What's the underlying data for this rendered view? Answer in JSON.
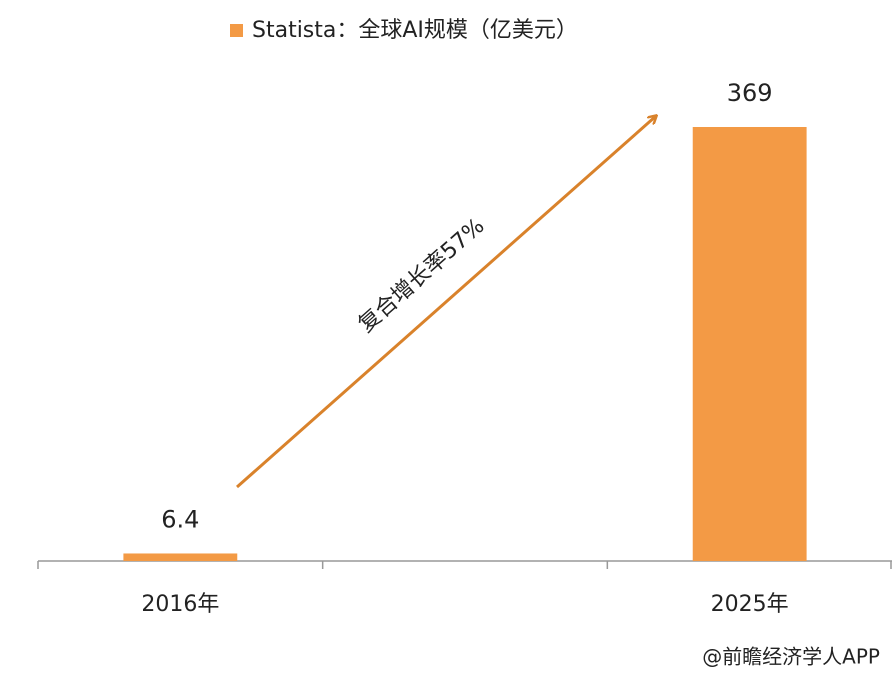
{
  "chart_data": {
    "type": "bar",
    "categories": [
      "2016年",
      null,
      "2025年"
    ],
    "series": [
      {
        "name": "Statista：全球AI规模（亿美元）",
        "color": "#f39a45",
        "values": [
          6.4,
          null,
          369
        ]
      }
    ],
    "annotation": "复合增长率57%",
    "source": "@前瞻经济学人APP"
  }
}
